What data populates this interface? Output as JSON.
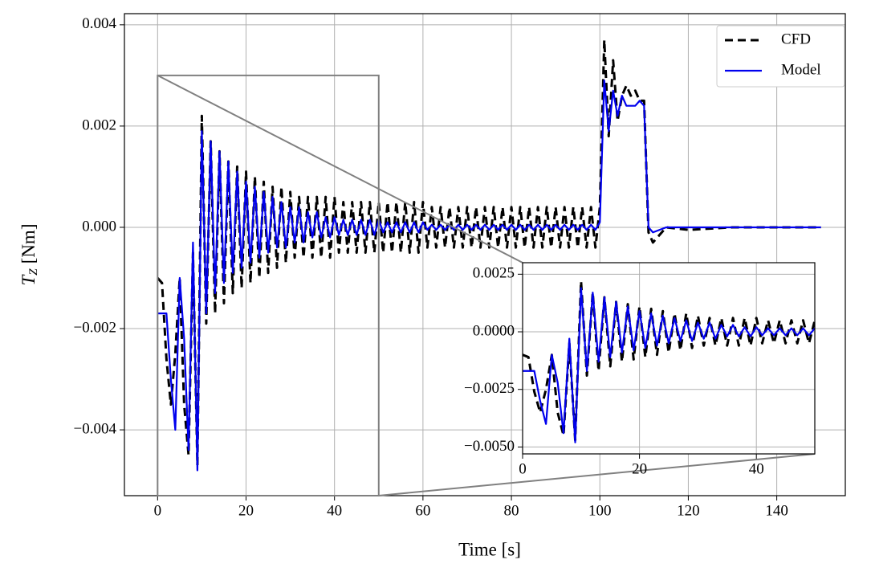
{
  "chart_data": {
    "type": "line",
    "xlabel": "Time [s]",
    "ylabel": {
      "symbol": "T",
      "subscript": "Z",
      "unit": "[Nm]"
    },
    "xlim": [
      -7.5,
      155.5
    ],
    "ylim": [
      -0.0053,
      0.00422
    ],
    "xticks": [
      0,
      20,
      40,
      60,
      80,
      100,
      120,
      140
    ],
    "yticks": [
      0.004,
      0.002,
      {
        "value": 0,
        "label": "0.000"
      },
      {
        "value": -0.002,
        "label": "−0.002"
      },
      {
        "value": -0.004,
        "label": "−0.004"
      }
    ],
    "grid": true,
    "legend": "upper right",
    "x": [
      0,
      1,
      2,
      3,
      4,
      5,
      6,
      7,
      8,
      9,
      10,
      11,
      12,
      13,
      14,
      15,
      16,
      17,
      18,
      19,
      20,
      21,
      22,
      23,
      24,
      25,
      26,
      27,
      28,
      29,
      30,
      31,
      32,
      33,
      34,
      35,
      36,
      37,
      38,
      39,
      40,
      41,
      42,
      43,
      44,
      45,
      46,
      47,
      48,
      49,
      50,
      51,
      52,
      53,
      54,
      55,
      56,
      57,
      58,
      59,
      60,
      61,
      62,
      63,
      64,
      65,
      66,
      67,
      68,
      69,
      70,
      71,
      72,
      73,
      74,
      75,
      76,
      77,
      78,
      79,
      80,
      81,
      82,
      83,
      84,
      85,
      86,
      87,
      88,
      89,
      90,
      91,
      92,
      93,
      94,
      95,
      96,
      97,
      98,
      99,
      100,
      101,
      102,
      103,
      104,
      105,
      106,
      107,
      108,
      109,
      110,
      111,
      112,
      115,
      120,
      130,
      140,
      150
    ],
    "series": [
      {
        "name": "CFD",
        "color": "#000000",
        "dashed": true,
        "values": [
          -0.001,
          -0.0011,
          -0.0026,
          -0.0035,
          -0.0025,
          -0.001,
          -0.0035,
          -0.0045,
          -0.0005,
          -0.0047,
          0.0022,
          -0.0019,
          0.0017,
          -0.0017,
          0.0015,
          -0.0015,
          0.0013,
          -0.0013,
          0.0012,
          -0.0012,
          0.0011,
          -0.0011,
          0.001,
          -0.001,
          0.0009,
          -0.0009,
          0.0008,
          -0.0008,
          0.0008,
          -0.0007,
          0.0007,
          -0.0006,
          0.0006,
          -0.0006,
          0.0006,
          -0.0006,
          0.0006,
          -0.0006,
          0.0006,
          -0.0006,
          0.0006,
          -0.0005,
          0.0005,
          -0.0005,
          0.0005,
          -0.0005,
          0.0005,
          -0.0005,
          0.0005,
          -0.0005,
          0.0005,
          -0.0005,
          0.0005,
          -0.0005,
          0.0005,
          -0.0005,
          0.0005,
          -0.0005,
          0.0005,
          -0.0005,
          0.0005,
          -0.0004,
          0.0004,
          -0.0004,
          0.0004,
          -0.0004,
          0.0004,
          -0.0004,
          0.0004,
          -0.0004,
          0.0004,
          -0.0004,
          0.0004,
          -0.0004,
          0.0004,
          -0.0004,
          0.0004,
          -0.0004,
          0.0004,
          -0.0004,
          0.0004,
          -0.0004,
          0.0004,
          -0.0004,
          0.0004,
          -0.0004,
          0.0004,
          -0.0004,
          0.0004,
          -0.0004,
          0.0004,
          -0.0004,
          0.0004,
          -0.0004,
          0.0004,
          -0.0004,
          0.0004,
          -0.0004,
          0.0004,
          -0.0004,
          0.0004,
          0.0037,
          0.0018,
          0.0033,
          0.0021,
          0.0026,
          0.0028,
          0.0026,
          0.0027,
          0.0025,
          0.0025,
          -0.0001,
          -0.0003,
          0,
          -5e-05,
          0,
          0,
          0
        ]
      },
      {
        "name": "Model",
        "color": "#0000ee",
        "dashed": false,
        "values": [
          -0.0017,
          -0.0017,
          -0.0017,
          -0.003,
          -0.004,
          -0.001,
          -0.0022,
          -0.0044,
          -0.0003,
          -0.0048,
          0.0019,
          -0.0017,
          0.0017,
          -0.0013,
          0.0015,
          -0.0011,
          0.0013,
          -0.0009,
          0.0011,
          -0.0008,
          0.0009,
          -0.0007,
          0.0008,
          -0.0006,
          0.0007,
          -0.0005,
          0.0006,
          -0.0004,
          0.0005,
          -0.0004,
          0.0004,
          -0.0003,
          0.0004,
          -0.0003,
          0.0003,
          -0.0002,
          0.0003,
          -0.0002,
          0.0002,
          -0.0002,
          0.0002,
          -0.00015,
          0.00015,
          -0.00015,
          0.00015,
          -0.00015,
          0.00015,
          -0.00015,
          0.00015,
          -0.00015,
          0.00015,
          -0.0001,
          0.0001,
          -0.0001,
          0.0001,
          -0.0001,
          0.0001,
          -0.0001,
          0.0001,
          -0.0001,
          0.0001,
          -5e-05,
          5e-05,
          -5e-05,
          5e-05,
          -5e-05,
          5e-05,
          -5e-05,
          5e-05,
          -5e-05,
          5e-05,
          -5e-05,
          5e-05,
          -5e-05,
          5e-05,
          -5e-05,
          5e-05,
          -5e-05,
          5e-05,
          -5e-05,
          5e-05,
          -5e-05,
          5e-05,
          -5e-05,
          5e-05,
          -5e-05,
          5e-05,
          -5e-05,
          5e-05,
          -5e-05,
          5e-05,
          -5e-05,
          5e-05,
          -5e-05,
          5e-05,
          -5e-05,
          5e-05,
          -5e-05,
          5e-05,
          -5e-05,
          0.0001,
          0.0029,
          0.0019,
          0.0027,
          0.0022,
          0.0026,
          0.0024,
          0.0024,
          0.0024,
          0.0025,
          0.0024,
          0,
          -0.0001,
          0,
          0,
          0,
          0,
          0
        ]
      }
    ],
    "inset": {
      "xlim": [
        0,
        50
      ],
      "ylim": [
        -0.0053,
        0.003
      ],
      "xticks": [
        0,
        20,
        40
      ],
      "yticks": [
        0.0025,
        {
          "value": 0,
          "label": "0.0000"
        },
        {
          "value": -0.0025,
          "label": "−0.0025"
        },
        {
          "value": -0.005,
          "label": "−0.0050"
        }
      ]
    }
  }
}
